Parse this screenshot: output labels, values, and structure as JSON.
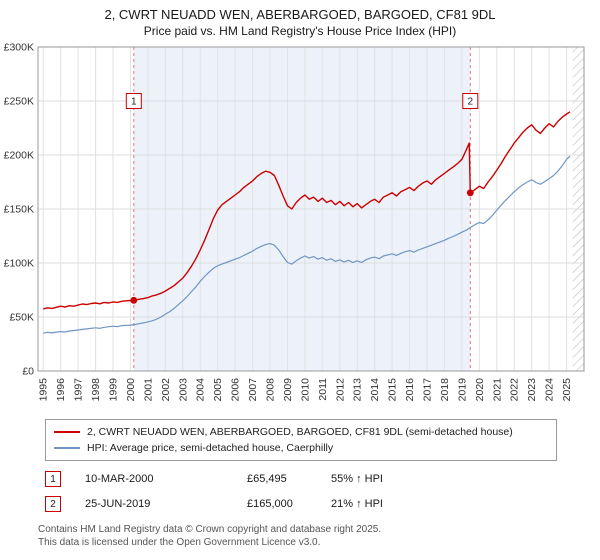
{
  "header": {
    "title": "2, CWRT NEUADD WEN, ABERBARGOED, BARGOED, CF81 9DL",
    "subtitle": "Price paid vs. HM Land Registry's House Price Index (HPI)"
  },
  "chart_data": {
    "type": "line",
    "grid": true,
    "legend_position": "bottom",
    "xlim": [
      1994.7,
      2026.0
    ],
    "ylim": [
      0,
      300000
    ],
    "ylabel": "",
    "xlabel": "",
    "y_ticks": [
      {
        "value": 0,
        "label": "£0"
      },
      {
        "value": 50000,
        "label": "£50K"
      },
      {
        "value": 100000,
        "label": "£100K"
      },
      {
        "value": 150000,
        "label": "£150K"
      },
      {
        "value": 200000,
        "label": "£200K"
      },
      {
        "value": 250000,
        "label": "£250K"
      },
      {
        "value": 300000,
        "label": "£300K"
      }
    ],
    "x_ticks": [
      1995,
      1996,
      1997,
      1998,
      1999,
      2000,
      2001,
      2002,
      2003,
      2004,
      2005,
      2006,
      2007,
      2008,
      2009,
      2010,
      2011,
      2012,
      2013,
      2014,
      2015,
      2016,
      2017,
      2018,
      2019,
      2020,
      2021,
      2022,
      2023,
      2024,
      2025
    ],
    "colors": {
      "shade": "#edf2fa",
      "grid": "#dddddd",
      "border": "#999999",
      "sale_line": "#dd7777"
    },
    "shaded_region": [
      2000.19,
      2019.48
    ],
    "hatched_region": [
      2025.35,
      2026.0
    ],
    "markers": [
      {
        "label": "1",
        "x": 2000.19,
        "value": 65495
      },
      {
        "label": "2",
        "x": 2019.48,
        "value": 165000
      }
    ],
    "series": [
      {
        "name": "2, CWRT NEUADD WEN, ABERBARGOED, BARGOED, CF81 9DL (semi-detached house)",
        "color": "#cc0000",
        "width": 1.4,
        "points": [
          [
            1995,
            57500
          ],
          [
            1995.25,
            58500
          ],
          [
            1995.5,
            58000
          ],
          [
            1995.75,
            59000
          ],
          [
            1996,
            60000
          ],
          [
            1996.25,
            59200
          ],
          [
            1996.5,
            60500
          ],
          [
            1996.75,
            60000
          ],
          [
            1997,
            61000
          ],
          [
            1997.25,
            62000
          ],
          [
            1997.5,
            61500
          ],
          [
            1997.75,
            62500
          ],
          [
            1998,
            63000
          ],
          [
            1998.25,
            62200
          ],
          [
            1998.5,
            63500
          ],
          [
            1998.75,
            63000
          ],
          [
            1999,
            64000
          ],
          [
            1999.25,
            63500
          ],
          [
            1999.5,
            64500
          ],
          [
            1999.75,
            65000
          ],
          [
            2000.19,
            65495
          ],
          [
            2000.5,
            66500
          ],
          [
            2000.75,
            67000
          ],
          [
            2001,
            68000
          ],
          [
            2001.25,
            69500
          ],
          [
            2001.5,
            70500
          ],
          [
            2001.75,
            72000
          ],
          [
            2002,
            74000
          ],
          [
            2002.25,
            76500
          ],
          [
            2002.5,
            79000
          ],
          [
            2002.75,
            82500
          ],
          [
            2003,
            86000
          ],
          [
            2003.25,
            91000
          ],
          [
            2003.5,
            97000
          ],
          [
            2003.75,
            104000
          ],
          [
            2004,
            112000
          ],
          [
            2004.25,
            121000
          ],
          [
            2004.5,
            131000
          ],
          [
            2004.75,
            141000
          ],
          [
            2005,
            149000
          ],
          [
            2005.25,
            154000
          ],
          [
            2005.5,
            157000
          ],
          [
            2005.75,
            160000
          ],
          [
            2006,
            163000
          ],
          [
            2006.25,
            166000
          ],
          [
            2006.5,
            170000
          ],
          [
            2006.75,
            173000
          ],
          [
            2007,
            176000
          ],
          [
            2007.25,
            180000
          ],
          [
            2007.5,
            183000
          ],
          [
            2007.75,
            185000
          ],
          [
            2008,
            184000
          ],
          [
            2008.25,
            181000
          ],
          [
            2008.5,
            172000
          ],
          [
            2008.75,
            162000
          ],
          [
            2009,
            153000
          ],
          [
            2009.25,
            150000
          ],
          [
            2009.5,
            156000
          ],
          [
            2009.75,
            160000
          ],
          [
            2010,
            163000
          ],
          [
            2010.25,
            159000
          ],
          [
            2010.5,
            161000
          ],
          [
            2010.75,
            157000
          ],
          [
            2011,
            160000
          ],
          [
            2011.25,
            156000
          ],
          [
            2011.5,
            158000
          ],
          [
            2011.75,
            154000
          ],
          [
            2012,
            157000
          ],
          [
            2012.25,
            153000
          ],
          [
            2012.5,
            156000
          ],
          [
            2012.75,
            152000
          ],
          [
            2013,
            155000
          ],
          [
            2013.25,
            151000
          ],
          [
            2013.5,
            154000
          ],
          [
            2013.75,
            157000
          ],
          [
            2014,
            159000
          ],
          [
            2014.25,
            156000
          ],
          [
            2014.5,
            161000
          ],
          [
            2014.75,
            163000
          ],
          [
            2015,
            165000
          ],
          [
            2015.25,
            162000
          ],
          [
            2015.5,
            166000
          ],
          [
            2015.75,
            168000
          ],
          [
            2016,
            170000
          ],
          [
            2016.25,
            167000
          ],
          [
            2016.5,
            171000
          ],
          [
            2016.75,
            174000
          ],
          [
            2017,
            176000
          ],
          [
            2017.25,
            173000
          ],
          [
            2017.5,
            177000
          ],
          [
            2017.75,
            180000
          ],
          [
            2018,
            183000
          ],
          [
            2018.25,
            186000
          ],
          [
            2018.5,
            189000
          ],
          [
            2018.75,
            192000
          ],
          [
            2019,
            196000
          ],
          [
            2019.2,
            203000
          ],
          [
            2019.42,
            211000
          ],
          [
            2019.48,
            165000
          ],
          [
            2019.75,
            168000
          ],
          [
            2020,
            171000
          ],
          [
            2020.25,
            169000
          ],
          [
            2020.5,
            175000
          ],
          [
            2020.75,
            180000
          ],
          [
            2021,
            186000
          ],
          [
            2021.25,
            192000
          ],
          [
            2021.5,
            199000
          ],
          [
            2021.75,
            205000
          ],
          [
            2022,
            211000
          ],
          [
            2022.25,
            216000
          ],
          [
            2022.5,
            221000
          ],
          [
            2022.75,
            225000
          ],
          [
            2023,
            228000
          ],
          [
            2023.25,
            223000
          ],
          [
            2023.5,
            220000
          ],
          [
            2023.75,
            225000
          ],
          [
            2024,
            229000
          ],
          [
            2024.25,
            226000
          ],
          [
            2024.5,
            231000
          ],
          [
            2024.75,
            235000
          ],
          [
            2025,
            238000
          ],
          [
            2025.2,
            240000
          ]
        ]
      },
      {
        "name": "HPI: Average price, semi-detached house, Caerphilly",
        "color": "#6f95c5",
        "width": 1.2,
        "points": [
          [
            1995,
            35000
          ],
          [
            1995.25,
            35800
          ],
          [
            1995.5,
            35300
          ],
          [
            1995.75,
            36000
          ],
          [
            1996,
            36500
          ],
          [
            1996.25,
            36000
          ],
          [
            1996.5,
            37000
          ],
          [
            1996.75,
            37500
          ],
          [
            1997,
            38000
          ],
          [
            1997.25,
            38500
          ],
          [
            1997.5,
            39000
          ],
          [
            1997.75,
            39500
          ],
          [
            1998,
            40000
          ],
          [
            1998.25,
            39500
          ],
          [
            1998.5,
            40500
          ],
          [
            1998.75,
            41000
          ],
          [
            1999,
            41500
          ],
          [
            1999.25,
            41000
          ],
          [
            1999.5,
            42000
          ],
          [
            1999.75,
            42300
          ],
          [
            2000,
            42500
          ],
          [
            2000.25,
            43000
          ],
          [
            2000.5,
            43800
          ],
          [
            2000.75,
            44500
          ],
          [
            2001,
            45500
          ],
          [
            2001.25,
            46500
          ],
          [
            2001.5,
            48000
          ],
          [
            2001.75,
            50000
          ],
          [
            2002,
            52500
          ],
          [
            2002.25,
            55000
          ],
          [
            2002.5,
            58000
          ],
          [
            2002.75,
            61500
          ],
          [
            2003,
            65000
          ],
          [
            2003.25,
            69000
          ],
          [
            2003.5,
            73500
          ],
          [
            2003.75,
            78000
          ],
          [
            2004,
            83000
          ],
          [
            2004.25,
            87500
          ],
          [
            2004.5,
            91500
          ],
          [
            2004.75,
            95000
          ],
          [
            2005,
            97500
          ],
          [
            2005.25,
            99000
          ],
          [
            2005.5,
            100500
          ],
          [
            2005.75,
            102000
          ],
          [
            2006,
            103500
          ],
          [
            2006.25,
            105000
          ],
          [
            2006.5,
            107000
          ],
          [
            2006.75,
            109000
          ],
          [
            2007,
            111000
          ],
          [
            2007.25,
            113500
          ],
          [
            2007.5,
            115500
          ],
          [
            2007.75,
            117000
          ],
          [
            2008,
            118000
          ],
          [
            2008.25,
            116500
          ],
          [
            2008.5,
            112000
          ],
          [
            2008.75,
            106000
          ],
          [
            2009,
            100500
          ],
          [
            2009.25,
            99000
          ],
          [
            2009.5,
            102000
          ],
          [
            2009.75,
            104500
          ],
          [
            2010,
            106500
          ],
          [
            2010.25,
            104500
          ],
          [
            2010.5,
            106000
          ],
          [
            2010.75,
            103500
          ],
          [
            2011,
            105000
          ],
          [
            2011.25,
            102500
          ],
          [
            2011.5,
            104000
          ],
          [
            2011.75,
            101500
          ],
          [
            2012,
            103000
          ],
          [
            2012.25,
            101000
          ],
          [
            2012.5,
            102500
          ],
          [
            2012.75,
            100500
          ],
          [
            2013,
            102000
          ],
          [
            2013.25,
            100500
          ],
          [
            2013.5,
            103000
          ],
          [
            2013.75,
            104500
          ],
          [
            2014,
            105500
          ],
          [
            2014.25,
            104000
          ],
          [
            2014.5,
            106500
          ],
          [
            2014.75,
            107500
          ],
          [
            2015,
            108500
          ],
          [
            2015.25,
            107000
          ],
          [
            2015.5,
            109000
          ],
          [
            2015.75,
            110500
          ],
          [
            2016,
            111500
          ],
          [
            2016.25,
            110000
          ],
          [
            2016.5,
            112000
          ],
          [
            2016.75,
            113500
          ],
          [
            2017,
            115000
          ],
          [
            2017.25,
            116500
          ],
          [
            2017.5,
            118000
          ],
          [
            2017.75,
            119500
          ],
          [
            2018,
            121000
          ],
          [
            2018.25,
            123000
          ],
          [
            2018.5,
            124500
          ],
          [
            2018.75,
            126500
          ],
          [
            2019,
            128500
          ],
          [
            2019.25,
            130500
          ],
          [
            2019.5,
            133000
          ],
          [
            2019.75,
            135500
          ],
          [
            2020,
            137500
          ],
          [
            2020.25,
            136500
          ],
          [
            2020.5,
            140000
          ],
          [
            2020.75,
            144000
          ],
          [
            2021,
            149000
          ],
          [
            2021.25,
            153500
          ],
          [
            2021.5,
            158000
          ],
          [
            2021.75,
            162000
          ],
          [
            2022,
            166000
          ],
          [
            2022.25,
            169500
          ],
          [
            2022.5,
            172500
          ],
          [
            2022.75,
            175000
          ],
          [
            2023,
            177000
          ],
          [
            2023.25,
            174500
          ],
          [
            2023.5,
            173000
          ],
          [
            2023.75,
            175500
          ],
          [
            2024,
            178000
          ],
          [
            2024.25,
            181000
          ],
          [
            2024.5,
            185000
          ],
          [
            2024.75,
            190000
          ],
          [
            2025,
            196000
          ],
          [
            2025.2,
            199000
          ]
        ]
      }
    ]
  },
  "annotations": [
    {
      "num": "1",
      "date": "10-MAR-2000",
      "price": "£65,495",
      "hpi_diff": "55% ↑ HPI"
    },
    {
      "num": "2",
      "date": "25-JUN-2019",
      "price": "£165,000",
      "hpi_diff": "21% ↑ HPI"
    }
  ],
  "footer": {
    "line1": "Contains HM Land Registry data © Crown copyright and database right 2025.",
    "line2": "This data is licensed under the Open Government Licence v3.0."
  }
}
